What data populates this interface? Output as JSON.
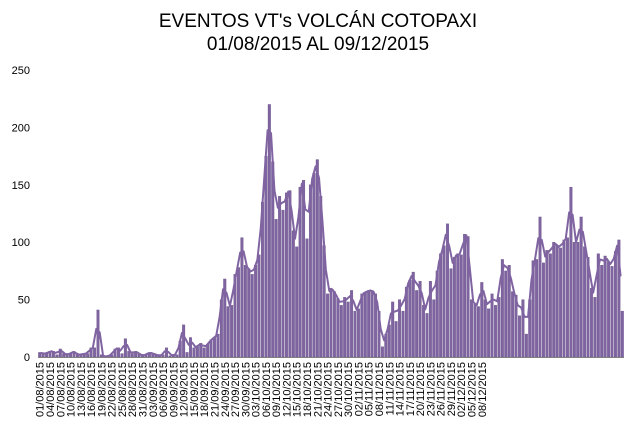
{
  "chart_data": {
    "type": "bar",
    "title": "EVENTOS  VT's  VOLCÁN COTOPAXI",
    "subtitle": "01/08/2015 AL 09/12/2015",
    "xlabel": "",
    "ylabel": "",
    "ylim": [
      0,
      250
    ],
    "yticks": [
      "0",
      "50",
      "100",
      "150",
      "200",
      "250"
    ],
    "grid": false,
    "legend": "none",
    "colors": {
      "bar": "#8064A2",
      "bar_border": "#5F4B7F",
      "line": "#8064A2"
    },
    "xtick_labels": [
      "01/08/2015",
      "04/08/2015",
      "07/08/2015",
      "10/08/2015",
      "13/08/2015",
      "16/08/2015",
      "19/08/2015",
      "22/08/2015",
      "25/08/2015",
      "28/08/2015",
      "31/08/2015",
      "03/09/2015",
      "06/09/2015",
      "09/09/2015",
      "12/09/2015",
      "15/09/2015",
      "18/09/2015",
      "21/09/2015",
      "24/09/2015",
      "27/09/2015",
      "30/09/2015",
      "03/10/2015",
      "06/10/2015",
      "09/10/2015",
      "12/10/2015",
      "15/10/2015",
      "18/10/2015",
      "21/10/2015",
      "24/10/2015",
      "27/10/2015",
      "30/10/2015",
      "02/11/2015",
      "05/11/2015",
      "08/11/2015",
      "11/11/2015",
      "14/11/2015",
      "17/11/2015",
      "20/11/2015",
      "23/11/2015",
      "26/11/2015",
      "29/11/2015",
      "02/12/2015",
      "05/12/2015",
      "08/12/2015"
    ],
    "values": [
      4,
      3,
      3,
      5,
      5,
      2,
      7,
      3,
      2,
      3,
      5,
      2,
      2,
      3,
      3,
      8,
      8,
      41,
      2,
      0,
      1,
      2,
      7,
      8,
      3,
      16,
      5,
      3,
      5,
      3,
      1,
      2,
      4,
      3,
      2,
      1,
      2,
      8,
      1,
      2,
      2,
      14,
      28,
      4,
      17,
      8,
      9,
      12,
      8,
      11,
      15,
      17,
      20,
      50,
      68,
      44,
      45,
      72,
      78,
      104,
      80,
      77,
      72,
      80,
      89,
      135,
      175,
      220,
      170,
      120,
      140,
      128,
      143,
      145,
      110,
      96,
      148,
      154,
      103,
      150,
      160,
      172,
      140,
      97,
      55,
      60,
      57,
      51,
      45,
      52,
      48,
      58,
      40,
      42,
      55,
      56,
      58,
      58,
      55,
      40,
      9,
      20,
      28,
      48,
      31,
      50,
      40,
      61,
      67,
      74,
      58,
      66,
      45,
      38,
      66,
      50,
      75,
      90,
      97,
      116,
      77,
      87,
      90,
      89,
      107,
      105,
      50,
      46,
      44,
      65,
      50,
      42,
      55,
      45,
      52,
      85,
      75,
      80,
      57,
      54,
      36,
      50,
      20,
      50,
      84,
      85,
      122,
      82,
      93,
      90,
      100,
      97,
      95,
      102,
      104,
      148,
      100,
      100,
      122,
      96,
      87,
      60,
      52,
      90,
      80,
      88,
      83,
      79,
      92,
      102,
      40
    ]
  }
}
